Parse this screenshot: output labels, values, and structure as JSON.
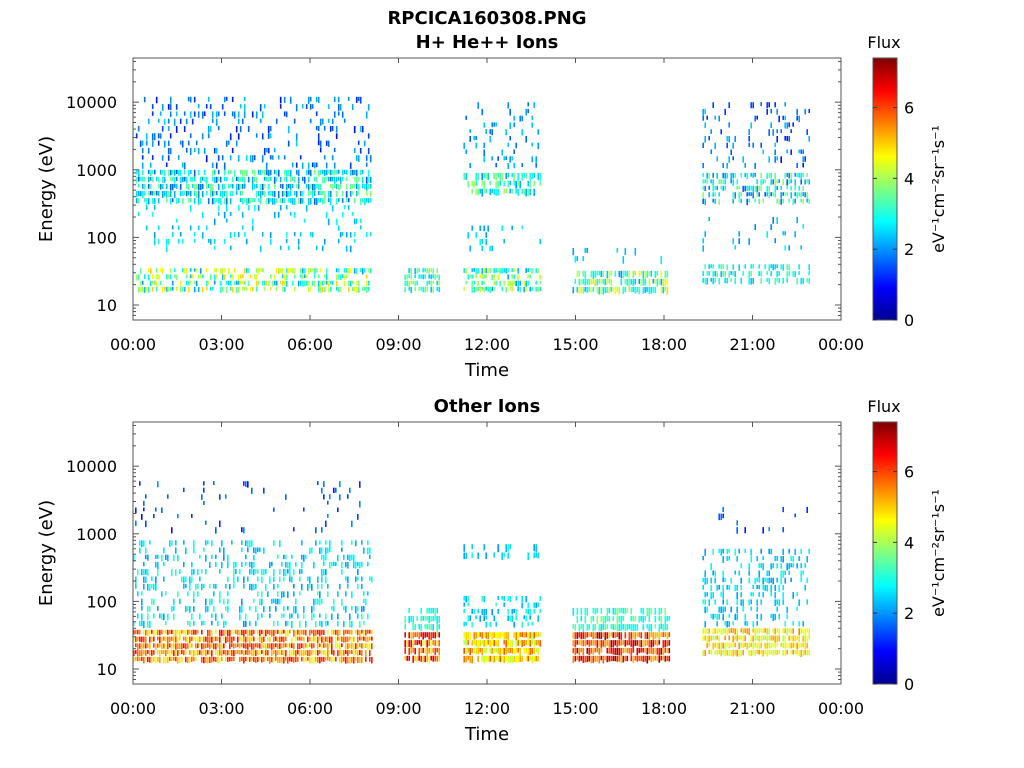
{
  "figure": {
    "title": "RPCICA160308.PNG"
  },
  "colorbar": {
    "title": "Flux",
    "unit_label": "eV⁻¹cm⁻²sr⁻¹s⁻¹",
    "ticks": [
      "0",
      "2",
      "4",
      "6"
    ],
    "range": [
      0,
      7.4
    ],
    "colormap": "jet",
    "colors": [
      "#00008f",
      "#0000ff",
      "#0080ff",
      "#00ffff",
      "#80ff80",
      "#ffff00",
      "#ff8000",
      "#ff0000",
      "#800000"
    ]
  },
  "chart_data": [
    {
      "type": "heatmap",
      "title": "H+ He++ Ions",
      "xlabel": "Time",
      "ylabel": "Energy (eV)",
      "xlim_hours": [
        0,
        24
      ],
      "x_ticks": [
        "00:00",
        "03:00",
        "06:00",
        "09:00",
        "12:00",
        "15:00",
        "18:00",
        "21:00",
        "00:00"
      ],
      "yscale": "log",
      "ylim": [
        6,
        45000
      ],
      "y_ticks": [
        "10",
        "100",
        "1000",
        "10000"
      ],
      "clim": [
        0,
        7.4
      ],
      "grid": false,
      "blocks": [
        {
          "start_hour": 0.1,
          "end_hour": 8.1,
          "bands": [
            {
              "e_min": 15,
              "e_max": 35,
              "flux_min": 2,
              "flux_max": 5,
              "density": 0.55
            },
            {
              "e_min": 60,
              "e_max": 300,
              "flux_min": 2,
              "flux_max": 3,
              "density": 0.12
            },
            {
              "e_min": 300,
              "e_max": 1000,
              "flux_min": 1.5,
              "flux_max": 3.8,
              "density": 0.7
            },
            {
              "e_min": 1000,
              "e_max": 12000,
              "flux_min": 1,
              "flux_max": 2.5,
              "density": 0.18
            }
          ]
        },
        {
          "start_hour": 9.2,
          "end_hour": 10.4,
          "bands": [
            {
              "e_min": 15,
              "e_max": 35,
              "flux_min": 2.3,
              "flux_max": 4,
              "density": 0.7
            }
          ]
        },
        {
          "start_hour": 11.2,
          "end_hour": 13.8,
          "bands": [
            {
              "e_min": 15,
              "e_max": 35,
              "flux_min": 2,
              "flux_max": 4.5,
              "density": 0.55
            },
            {
              "e_min": 60,
              "e_max": 150,
              "flux_min": 2,
              "flux_max": 3,
              "density": 0.1
            },
            {
              "e_min": 400,
              "e_max": 900,
              "flux_min": 2,
              "flux_max": 4,
              "density": 0.6
            },
            {
              "e_min": 1000,
              "e_max": 10000,
              "flux_min": 1.5,
              "flux_max": 2.5,
              "density": 0.15
            }
          ]
        },
        {
          "start_hour": 14.9,
          "end_hour": 18.2,
          "bands": [
            {
              "e_min": 14,
              "e_max": 32,
              "flux_min": 2,
              "flux_max": 5,
              "density": 0.7
            },
            {
              "e_min": 40,
              "e_max": 70,
              "flux_min": 2,
              "flux_max": 2.8,
              "density": 0.08
            }
          ]
        },
        {
          "start_hour": 19.3,
          "end_hour": 22.9,
          "bands": [
            {
              "e_min": 20,
              "e_max": 40,
              "flux_min": 2.3,
              "flux_max": 3.5,
              "density": 0.45
            },
            {
              "e_min": 60,
              "e_max": 200,
              "flux_min": 1.8,
              "flux_max": 2.8,
              "density": 0.12
            },
            {
              "e_min": 300,
              "e_max": 900,
              "flux_min": 1.5,
              "flux_max": 4,
              "density": 0.55
            },
            {
              "e_min": 1000,
              "e_max": 10000,
              "flux_min": 1,
              "flux_max": 2.5,
              "density": 0.18
            }
          ]
        }
      ]
    },
    {
      "type": "heatmap",
      "title": "Other Ions",
      "xlabel": "Time",
      "ylabel": "Energy (eV)",
      "xlim_hours": [
        0,
        24
      ],
      "x_ticks": [
        "00:00",
        "03:00",
        "06:00",
        "09:00",
        "12:00",
        "15:00",
        "18:00",
        "21:00",
        "00:00"
      ],
      "yscale": "log",
      "ylim": [
        6,
        45000
      ],
      "y_ticks": [
        "10",
        "100",
        "1000",
        "10000"
      ],
      "clim": [
        0,
        7.4
      ],
      "grid": false,
      "blocks": [
        {
          "start_hour": 0.0,
          "end_hour": 8.1,
          "bands": [
            {
              "e_min": 12,
              "e_max": 38,
              "flux_min": 4.5,
              "flux_max": 6.5,
              "density": 0.9
            },
            {
              "e_min": 40,
              "e_max": 300,
              "flux_min": 2,
              "flux_max": 3.3,
              "density": 0.3
            },
            {
              "e_min": 300,
              "e_max": 800,
              "flux_min": 2,
              "flux_max": 3,
              "density": 0.3
            },
            {
              "e_min": 1000,
              "e_max": 6000,
              "flux_min": 1,
              "flux_max": 2,
              "density": 0.05
            }
          ]
        },
        {
          "start_hour": 9.2,
          "end_hour": 10.4,
          "bands": [
            {
              "e_min": 12,
              "e_max": 35,
              "flux_min": 4.5,
              "flux_max": 7,
              "density": 0.95
            },
            {
              "e_min": 35,
              "e_max": 80,
              "flux_min": 2.5,
              "flux_max": 3.5,
              "density": 0.6
            }
          ]
        },
        {
          "start_hour": 11.2,
          "end_hour": 13.8,
          "bands": [
            {
              "e_min": 12,
              "e_max": 35,
              "flux_min": 4,
              "flux_max": 6,
              "density": 0.85
            },
            {
              "e_min": 40,
              "e_max": 120,
              "flux_min": 2,
              "flux_max": 3.2,
              "density": 0.35
            },
            {
              "e_min": 400,
              "e_max": 700,
              "flux_min": 2,
              "flux_max": 3,
              "density": 0.25
            }
          ]
        },
        {
          "start_hour": 14.9,
          "end_hour": 18.2,
          "bands": [
            {
              "e_min": 12,
              "e_max": 35,
              "flux_min": 5,
              "flux_max": 7.2,
              "density": 0.95
            },
            {
              "e_min": 35,
              "e_max": 80,
              "flux_min": 2.5,
              "flux_max": 3.8,
              "density": 0.6
            }
          ]
        },
        {
          "start_hour": 19.3,
          "end_hour": 22.9,
          "bands": [
            {
              "e_min": 15,
              "e_max": 40,
              "flux_min": 4,
              "flux_max": 5.5,
              "density": 0.85
            },
            {
              "e_min": 40,
              "e_max": 600,
              "flux_min": 2,
              "flux_max": 3,
              "density": 0.3
            },
            {
              "e_min": 1000,
              "e_max": 2500,
              "flux_min": 1,
              "flux_max": 2,
              "density": 0.06
            }
          ]
        }
      ]
    }
  ]
}
